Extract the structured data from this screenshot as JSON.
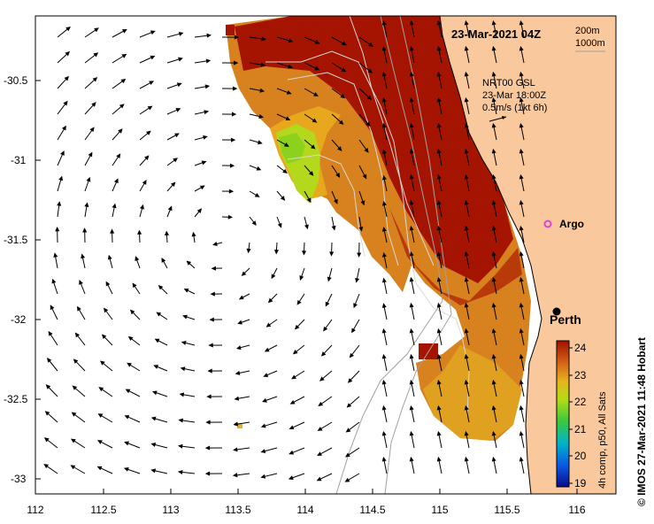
{
  "map": {
    "title": "23-Mar-2021 04Z",
    "contour_legend": [
      "200m",
      "1000m"
    ],
    "current_info": [
      "NRT00 GSL",
      "23-Mar 18:00Z",
      "0.5m/s (1kt 6h)"
    ],
    "markers": [
      {
        "name": "Argo",
        "lon": 115.85,
        "lat": -31.55,
        "color": "#e040e0"
      },
      {
        "name": "Perth",
        "lon": 115.86,
        "lat": -31.95,
        "color": "#000000"
      }
    ],
    "lon_ticks": [
      "112",
      "112.5",
      "113",
      "113.5",
      "114",
      "114.5",
      "115",
      "115.5",
      "116"
    ],
    "lat_ticks": [
      "-30.5",
      "-31",
      "-31.5",
      "-32",
      "-32.5",
      "-33"
    ],
    "colorbar": {
      "label": "4h comp, p50, All Sats",
      "ticks": [
        "24",
        "23",
        "22",
        "21",
        "20",
        "19"
      ],
      "min": 19,
      "max": 24
    },
    "credit": "© IMOS 27-Mar-2021 11:48 Hobart",
    "colors": {
      "land": "#f9c89c",
      "sst_hot": "#a51400",
      "sst_mid": "#d9861c",
      "sst_cool": "#9ed21c"
    }
  }
}
